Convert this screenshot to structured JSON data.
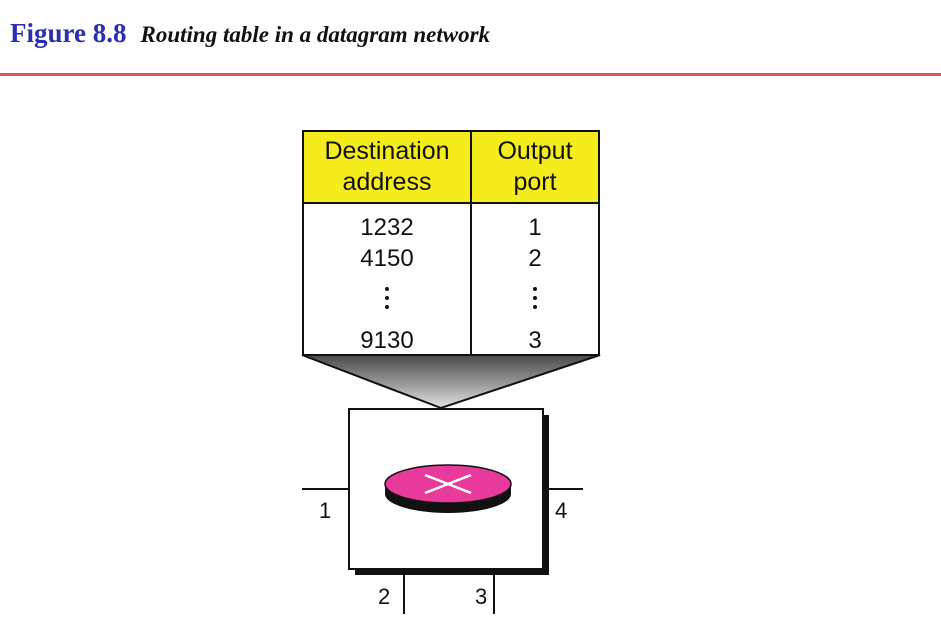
{
  "figure": {
    "number": "Figure 8.8",
    "title": "Routing table in a datagram network"
  },
  "routing_table": {
    "headers": {
      "destination_line1": "Destination",
      "destination_line2": "address",
      "port_line1": "Output",
      "port_line2": "port"
    },
    "rows": [
      {
        "destination": "1232",
        "port": "1"
      },
      {
        "destination": "4150",
        "port": "2"
      },
      {
        "destination": "9130",
        "port": "3"
      }
    ]
  },
  "switch_ports": {
    "left": "1",
    "bottom_left": "2",
    "bottom_right": "3",
    "right": "4"
  },
  "colors": {
    "title_blue": "#2a2fb0",
    "rule_red": "#e8505a",
    "header_yellow": "#f5ec1d",
    "router_magenta": "#e83a9a"
  }
}
